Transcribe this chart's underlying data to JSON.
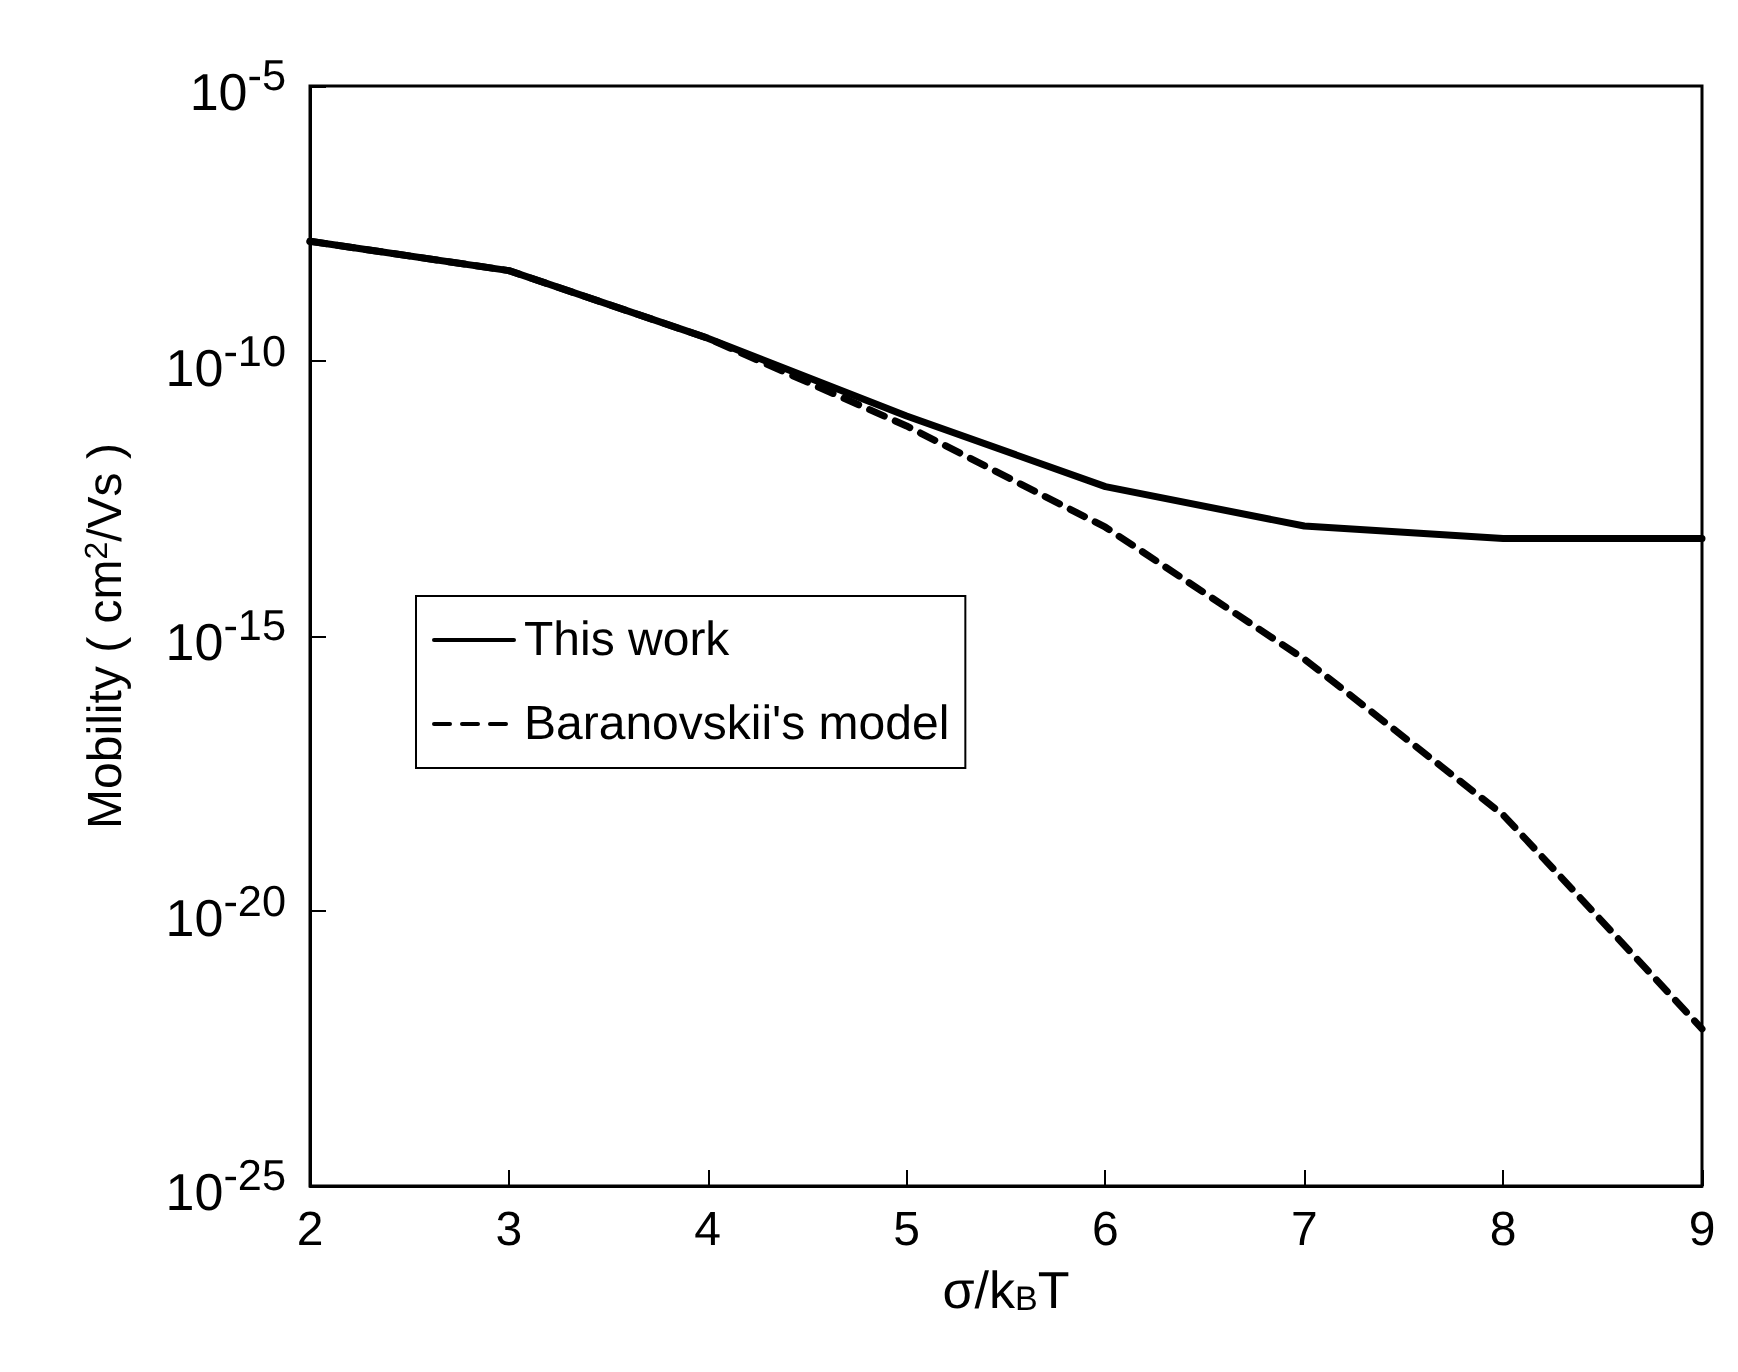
{
  "chart_data": {
    "type": "line",
    "xlabel": "σ/k$_{B}$T",
    "ylabel": "Mobility ( cm$^{2}$/Vs )",
    "x": [
      2,
      3,
      4,
      5,
      6,
      7,
      8,
      9
    ],
    "series": [
      {
        "name": "This work",
        "color": "#000000",
        "line_style": "solid",
        "values": [
          1.5e-08,
          4.4e-09,
          2.6e-10,
          1e-11,
          5.2e-13,
          1e-13,
          5.9e-14,
          5.9e-14
        ]
      },
      {
        "name": "Baranovskii's model",
        "color": "#000000",
        "line_style": "dashed",
        "values": [
          1.5e-08,
          4.4e-09,
          2.6e-10,
          6.6e-12,
          9.5e-14,
          3.8e-16,
          5.6e-19,
          7.2e-23
        ]
      }
    ],
    "xlim": [
      2,
      9
    ],
    "xticks": [
      2,
      3,
      4,
      5,
      6,
      7,
      8,
      9
    ],
    "ylim": [
      1e-25,
      1e-05
    ],
    "log": "y",
    "yticks": [
      {
        "value": 1e-25,
        "label": "10$^{-25}$"
      },
      {
        "value": 1e-20,
        "label": "10$^{-20}$"
      },
      {
        "value": 1e-15,
        "label": "10$^{-15}$"
      },
      {
        "value": 1e-10,
        "label": "10$^{-10}$"
      },
      {
        "value": 1e-05,
        "label": "10$^{-5}$"
      }
    ],
    "grid": false,
    "legend": "left",
    "marker": "none"
  }
}
